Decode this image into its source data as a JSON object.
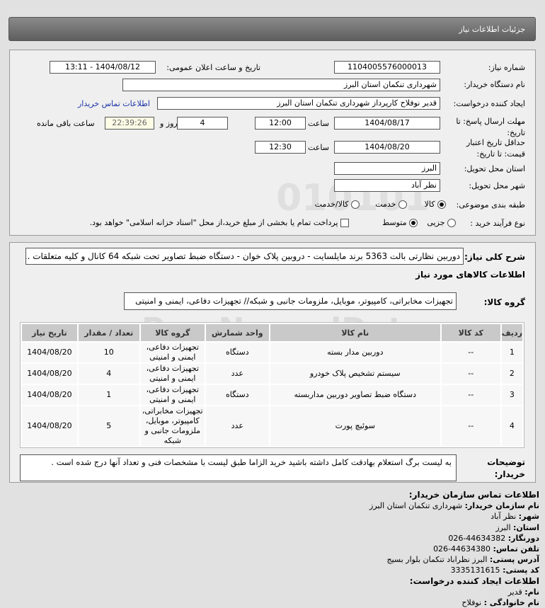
{
  "header": {
    "title": "جزئیات اطلاعات نیاز"
  },
  "form": {
    "need_number_label": "شماره نیاز:",
    "need_number": "1104005576000013",
    "announce_label": "تاریخ و ساعت اعلان عمومی:",
    "announce_value": "1404/08/12 - 13:11",
    "buyer_label": "نام دستگاه خریدار:",
    "buyer": "شهرداری تنکمان استان البرز",
    "creator_label": "ایجاد کننده درخواست:",
    "creator": "قدیر نوفلاح کارپرداز شهرداری تنکمان استان البرز",
    "contact_link": "اطلاعات تماس خریدار",
    "deadline_label": "مهلت ارسال پاسخ: تا تاریخ:",
    "deadline_date": "1404/08/17",
    "time_label": "ساعت",
    "deadline_time": "12:00",
    "days": "4",
    "days_label": "روز و",
    "remaining": "22:39:26",
    "remaining_label": "ساعت باقی مانده",
    "validity_label": "حداقل تاریخ اعتبار قیمت: تا تاریخ:",
    "validity_date": "1404/08/20",
    "validity_time": "12:30",
    "province_label": "استان محل تحویل:",
    "province": "البرز",
    "city_label": "شهر محل تحویل:",
    "city": "نظر آباد",
    "category_label": "طبقه بندی موضوعی:",
    "category_options": [
      "کالا",
      "خدمت",
      "کالا/خدمت"
    ],
    "category_selected": "کالا",
    "process_label": "نوع فرآیند خرید :",
    "process_options": [
      "جزیی",
      "متوسط"
    ],
    "process_selected": "متوسط",
    "payment_note": "پرداخت تمام یا بخشی از مبلغ خرید،از محل \"اسناد خزانه اسلامی\" خواهد بود."
  },
  "details": {
    "summary_label": "شرح کلی نیاز:",
    "summary": "دوربین نظارتی بالت 5363 برند مایلسایت - دروبین پلاک خوان - دستگاه ضبط تصاویر تحت شبکه 64 کانال و کلیه متعلقات ...",
    "items_title": "اطلاعات کالاهای مورد نیاز",
    "group_label": "گروه کالا:",
    "group": "تجهیزات مخابراتی، کامپیوتر، موبایل، ملزومات جانبی و شبکه// تجهیزات دفاعی، ایمنی و امنیتی",
    "columns": [
      "ردیف",
      "کد کالا",
      "نام کالا",
      "واحد شمارش",
      "گروه کالا",
      "تعداد / مقدار",
      "تاریخ نیاز"
    ],
    "rows": [
      {
        "n": "1",
        "code": "--",
        "name": "دوربین مدار بسته",
        "unit": "دستگاه",
        "group": "تجهیزات دفاعی، ایمنی و امنیتی",
        "qty": "10",
        "date": "1404/08/20"
      },
      {
        "n": "2",
        "code": "--",
        "name": "سیستم تشخیص پلاک خودرو",
        "unit": "عدد",
        "group": "تجهیزات دفاعی، ایمنی و امنیتی",
        "qty": "4",
        "date": "1404/08/20"
      },
      {
        "n": "3",
        "code": "--",
        "name": "دستگاه ضبط تصاویر دوربین مداربسته",
        "unit": "دستگاه",
        "group": "تجهیزات دفاعی، ایمنی و امنیتی",
        "qty": "1",
        "date": "1404/08/20"
      },
      {
        "n": "4",
        "code": "--",
        "name": "سوئیچ پورت",
        "unit": "عدد",
        "group": "تجهیزات مخابراتی، کامپیوتر، موبایل، ملزومات جانبی و شبکه",
        "qty": "5",
        "date": "1404/08/20"
      }
    ],
    "notes_label": "توضیحات خریدار:",
    "notes": "به لیست برگ استعلام بهادقت کامل داشته باشید خرید الزاما طبق لیست با مشخصات فنی و تعداد آنها درج شده است ."
  },
  "contact": {
    "title": "اطلاعات تماس سازمان خریدار:",
    "org_label": "نام سازمان خریدار:",
    "org": "شهرداری تنکمان استان البرز",
    "city_label": "شهر:",
    "city": "نظر آباد",
    "province_label": "استان:",
    "province": "البرز",
    "fax_label": "دورنگار:",
    "fax": "026-44634382",
    "phone_label": "تلفن تماس:",
    "phone": "026-44634380",
    "address_label": "آدرس پستی:",
    "address": "البرز نظراباد تنکمان بلوار بسیج",
    "postal_label": "کد پستی:",
    "postal": "3335131615",
    "creator_title": "اطلاعات ایجاد کننده درخواست:",
    "name_label": "نام:",
    "name": "قدیر",
    "family_label": "نام خانوادگی :",
    "family": "نوفلاح"
  },
  "watermark": "ParsNamadData"
}
